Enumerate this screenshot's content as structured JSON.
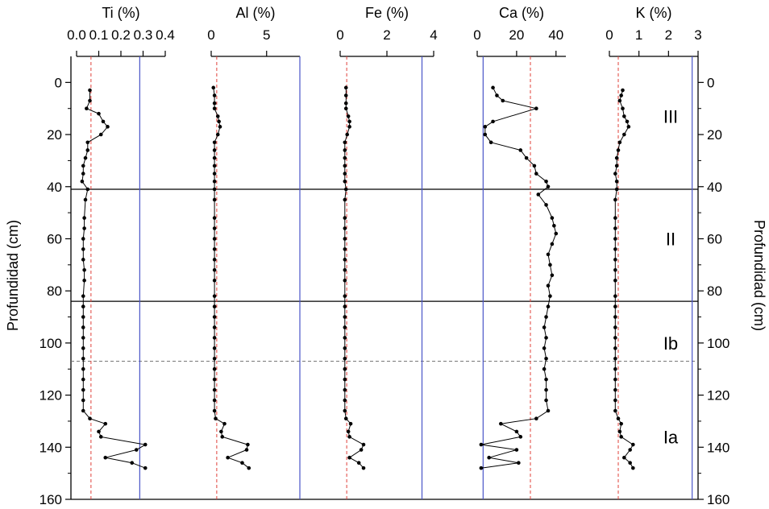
{
  "chart_data": {
    "type": "line",
    "y_axis": {
      "label_left": "Profundidad (cm)",
      "label_right": "Profundidad (cm)",
      "range": [
        160,
        -10
      ],
      "ticks": [
        0,
        20,
        40,
        60,
        80,
        100,
        120,
        140,
        160
      ],
      "inverted": true
    },
    "zones": [
      {
        "label": "III",
        "depth": 13
      },
      {
        "label": "II",
        "depth": 60
      },
      {
        "label": "Ib",
        "depth": 100
      },
      {
        "label": "Ia",
        "depth": 136
      }
    ],
    "boundaries": [
      {
        "depth": 41,
        "style": "solid",
        "color": "#000000"
      },
      {
        "depth": 84,
        "style": "solid",
        "color": "#000000"
      },
      {
        "depth": 107,
        "style": "dashed",
        "color": "#666666"
      }
    ],
    "series": [
      {
        "name": "Ti (%)",
        "range": [
          0,
          0.4
        ],
        "ticks": [
          0.0,
          0.1,
          0.2,
          0.3,
          0.4
        ],
        "tick_labels": [
          "0.0",
          "0.1",
          "0.2",
          "0.3",
          "0.4"
        ],
        "red_ref": 0.065,
        "blue_ref": 0.285,
        "points": [
          [
            0.06,
            3
          ],
          [
            0.06,
            7
          ],
          [
            0.045,
            10
          ],
          [
            0.1,
            12
          ],
          [
            0.12,
            15
          ],
          [
            0.14,
            17
          ],
          [
            0.11,
            20
          ],
          [
            0.05,
            23
          ],
          [
            0.05,
            26
          ],
          [
            0.04,
            29
          ],
          [
            0.03,
            32
          ],
          [
            0.03,
            35
          ],
          [
            0.025,
            38
          ],
          [
            0.05,
            41
          ],
          [
            0.04,
            45
          ],
          [
            0.035,
            52
          ],
          [
            0.035,
            56
          ],
          [
            0.03,
            60
          ],
          [
            0.03,
            64
          ],
          [
            0.03,
            68
          ],
          [
            0.035,
            72
          ],
          [
            0.035,
            76
          ],
          [
            0.03,
            82
          ],
          [
            0.03,
            86
          ],
          [
            0.03,
            90
          ],
          [
            0.03,
            94
          ],
          [
            0.03,
            98
          ],
          [
            0.03,
            102
          ],
          [
            0.03,
            106
          ],
          [
            0.03,
            110
          ],
          [
            0.03,
            114
          ],
          [
            0.03,
            118
          ],
          [
            0.03,
            122
          ],
          [
            0.03,
            126
          ],
          [
            0.06,
            129
          ],
          [
            0.13,
            131
          ],
          [
            0.1,
            134
          ],
          [
            0.11,
            136
          ],
          [
            0.31,
            139
          ],
          [
            0.27,
            141
          ],
          [
            0.13,
            144
          ],
          [
            0.25,
            146
          ],
          [
            0.31,
            148
          ]
        ]
      },
      {
        "name": "Al (%)",
        "range": [
          0,
          8
        ],
        "ticks": [
          0,
          5
        ],
        "tick_labels": [
          "0",
          "5"
        ],
        "red_ref": 0.5,
        "blue_ref": 8,
        "points": [
          [
            0.2,
            2
          ],
          [
            0.3,
            5
          ],
          [
            0.3,
            8
          ],
          [
            0.3,
            10
          ],
          [
            0.6,
            13
          ],
          [
            0.7,
            15
          ],
          [
            0.8,
            17
          ],
          [
            0.6,
            20
          ],
          [
            0.3,
            23
          ],
          [
            0.3,
            26
          ],
          [
            0.3,
            29
          ],
          [
            0.3,
            32
          ],
          [
            0.3,
            35
          ],
          [
            0.3,
            38
          ],
          [
            0.3,
            41
          ],
          [
            0.3,
            45
          ],
          [
            0.3,
            52
          ],
          [
            0.3,
            56
          ],
          [
            0.3,
            60
          ],
          [
            0.3,
            64
          ],
          [
            0.3,
            68
          ],
          [
            0.3,
            72
          ],
          [
            0.3,
            76
          ],
          [
            0.3,
            82
          ],
          [
            0.3,
            86
          ],
          [
            0.3,
            90
          ],
          [
            0.3,
            94
          ],
          [
            0.3,
            98
          ],
          [
            0.3,
            102
          ],
          [
            0.3,
            106
          ],
          [
            0.3,
            110
          ],
          [
            0.3,
            114
          ],
          [
            0.3,
            118
          ],
          [
            0.3,
            122
          ],
          [
            0.3,
            126
          ],
          [
            0.4,
            129
          ],
          [
            1.2,
            131
          ],
          [
            0.9,
            134
          ],
          [
            1.0,
            136
          ],
          [
            3.3,
            139
          ],
          [
            3.2,
            141
          ],
          [
            1.5,
            144
          ],
          [
            2.8,
            146
          ],
          [
            3.4,
            148
          ]
        ]
      },
      {
        "name": "Fe (%)",
        "range": [
          0,
          4
        ],
        "ticks": [
          0,
          2,
          4
        ],
        "tick_labels": [
          "0",
          "2",
          "4"
        ],
        "red_ref": 0.28,
        "blue_ref": 3.5,
        "points": [
          [
            0.25,
            2
          ],
          [
            0.25,
            5
          ],
          [
            0.25,
            8
          ],
          [
            0.25,
            10
          ],
          [
            0.35,
            13
          ],
          [
            0.4,
            15
          ],
          [
            0.4,
            17
          ],
          [
            0.3,
            20
          ],
          [
            0.2,
            23
          ],
          [
            0.2,
            26
          ],
          [
            0.2,
            29
          ],
          [
            0.2,
            32
          ],
          [
            0.2,
            35
          ],
          [
            0.2,
            38
          ],
          [
            0.25,
            41
          ],
          [
            0.2,
            45
          ],
          [
            0.2,
            52
          ],
          [
            0.2,
            56
          ],
          [
            0.2,
            60
          ],
          [
            0.2,
            64
          ],
          [
            0.2,
            68
          ],
          [
            0.2,
            72
          ],
          [
            0.2,
            76
          ],
          [
            0.2,
            82
          ],
          [
            0.2,
            86
          ],
          [
            0.2,
            90
          ],
          [
            0.2,
            94
          ],
          [
            0.2,
            98
          ],
          [
            0.2,
            102
          ],
          [
            0.2,
            106
          ],
          [
            0.2,
            110
          ],
          [
            0.2,
            114
          ],
          [
            0.2,
            118
          ],
          [
            0.2,
            122
          ],
          [
            0.2,
            126
          ],
          [
            0.25,
            129
          ],
          [
            0.45,
            131
          ],
          [
            0.35,
            134
          ],
          [
            0.4,
            136
          ],
          [
            1.0,
            139
          ],
          [
            0.9,
            141
          ],
          [
            0.4,
            144
          ],
          [
            0.8,
            146
          ],
          [
            1.0,
            148
          ]
        ]
      },
      {
        "name": "Ca (%)",
        "range": [
          0,
          45
        ],
        "ticks": [
          0,
          20,
          40
        ],
        "tick_labels": [
          "0",
          "20",
          "40"
        ],
        "red_ref": 27,
        "blue_ref": 3,
        "points": [
          [
            8,
            2
          ],
          [
            10,
            5
          ],
          [
            13,
            7
          ],
          [
            30,
            10
          ],
          [
            8,
            15
          ],
          [
            4,
            17
          ],
          [
            4,
            20
          ],
          [
            7,
            23
          ],
          [
            22,
            26
          ],
          [
            25,
            29
          ],
          [
            29,
            32
          ],
          [
            30,
            35
          ],
          [
            35,
            38
          ],
          [
            36,
            40
          ],
          [
            31,
            43
          ],
          [
            35,
            47
          ],
          [
            38,
            52
          ],
          [
            39,
            55
          ],
          [
            40,
            58
          ],
          [
            38,
            62
          ],
          [
            36,
            66
          ],
          [
            37,
            70
          ],
          [
            38,
            74
          ],
          [
            36,
            78
          ],
          [
            37,
            82
          ],
          [
            36,
            86
          ],
          [
            35,
            90
          ],
          [
            34,
            94
          ],
          [
            35,
            98
          ],
          [
            34,
            102
          ],
          [
            35,
            106
          ],
          [
            34,
            110
          ],
          [
            35,
            114
          ],
          [
            35,
            118
          ],
          [
            35,
            122
          ],
          [
            36,
            126
          ],
          [
            30,
            129
          ],
          [
            12,
            131
          ],
          [
            20,
            134
          ],
          [
            22,
            136
          ],
          [
            2,
            139
          ],
          [
            20,
            141
          ],
          [
            6,
            144
          ],
          [
            21,
            146
          ],
          [
            2,
            148
          ]
        ]
      },
      {
        "name": "K (%)",
        "range": [
          0,
          3
        ],
        "ticks": [
          0,
          1,
          2,
          3
        ],
        "tick_labels": [
          "0",
          "1",
          "2",
          "3"
        ],
        "red_ref": 0.3,
        "blue_ref": 2.8,
        "points": [
          [
            0.45,
            3
          ],
          [
            0.4,
            5
          ],
          [
            0.35,
            7
          ],
          [
            0.45,
            10
          ],
          [
            0.5,
            13
          ],
          [
            0.6,
            15
          ],
          [
            0.65,
            17
          ],
          [
            0.5,
            20
          ],
          [
            0.35,
            23
          ],
          [
            0.3,
            26
          ],
          [
            0.25,
            29
          ],
          [
            0.25,
            32
          ],
          [
            0.2,
            35
          ],
          [
            0.25,
            38
          ],
          [
            0.25,
            41
          ],
          [
            0.2,
            45
          ],
          [
            0.2,
            52
          ],
          [
            0.2,
            56
          ],
          [
            0.2,
            60
          ],
          [
            0.2,
            64
          ],
          [
            0.2,
            68
          ],
          [
            0.2,
            72
          ],
          [
            0.2,
            76
          ],
          [
            0.2,
            82
          ],
          [
            0.2,
            86
          ],
          [
            0.2,
            90
          ],
          [
            0.2,
            94
          ],
          [
            0.2,
            98
          ],
          [
            0.2,
            102
          ],
          [
            0.2,
            106
          ],
          [
            0.2,
            110
          ],
          [
            0.2,
            114
          ],
          [
            0.2,
            118
          ],
          [
            0.2,
            122
          ],
          [
            0.2,
            126
          ],
          [
            0.3,
            129
          ],
          [
            0.4,
            131
          ],
          [
            0.35,
            134
          ],
          [
            0.4,
            136
          ],
          [
            0.8,
            139
          ],
          [
            0.7,
            141
          ],
          [
            0.5,
            144
          ],
          [
            0.7,
            146
          ],
          [
            0.8,
            148
          ]
        ]
      }
    ]
  }
}
